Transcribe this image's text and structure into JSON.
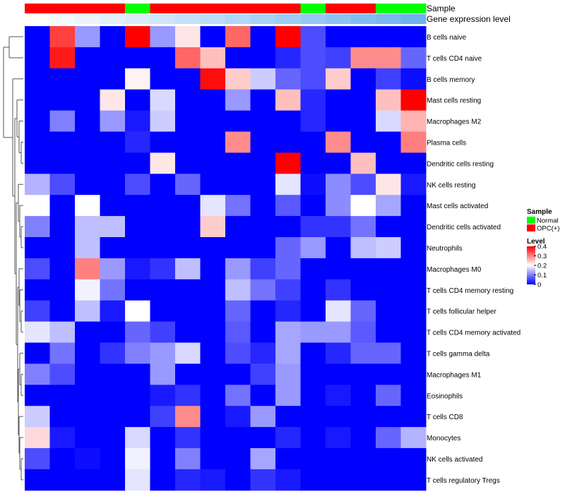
{
  "chart_data": {
    "type": "heatmap",
    "title": "",
    "annotation_labels": {
      "sample": "Sample",
      "gene_expression": "Gene expression level"
    },
    "sample_groups": [
      "OPC(+)",
      "OPC(+)",
      "OPC(+)",
      "OPC(+)",
      "Normal",
      "OPC(+)",
      "OPC(+)",
      "OPC(+)",
      "OPC(+)",
      "OPC(+)",
      "OPC(+)",
      "Normal",
      "OPC(+)",
      "OPC(+)",
      "Normal",
      "Normal"
    ],
    "gene_expression_levels": [
      0.0,
      0.05,
      0.1,
      0.14,
      0.19,
      0.24,
      0.29,
      0.33,
      0.38,
      0.43,
      0.48,
      0.52,
      0.57,
      0.62,
      0.67,
      0.72
    ],
    "rows": [
      "B cells naive",
      "T cells CD4 naive",
      "B cells memory",
      "Mast cells resting",
      "Macrophages M2",
      "Plasma cells",
      "Dendritic cells resting",
      "NK cells resting",
      "Mast cells activated",
      "Dendritic cells activated",
      "Neutrophils",
      "Macrophages M0",
      "T cells CD4 memory resting",
      "T cells follicular helper",
      "T cells CD4 memory activated",
      "T cells gamma delta",
      "Macrophages M1",
      "Eosinophils",
      "T cells CD8",
      "Monocytes",
      "NK cells activated",
      "T cells regulatory  Tregs"
    ],
    "values": [
      [
        0.0,
        0.35,
        0.12,
        0.0,
        0.4,
        0.12,
        0.22,
        0.0,
        0.32,
        0.0,
        0.4,
        0.06,
        0.0,
        0.0,
        0.0,
        0.0
      ],
      [
        0.0,
        0.38,
        0.0,
        0.0,
        0.0,
        0.0,
        0.32,
        0.25,
        0.0,
        0.0,
        0.03,
        0.06,
        0.05,
        0.29,
        0.29,
        0.08
      ],
      [
        0.0,
        0.0,
        0.0,
        0.0,
        0.21,
        0.0,
        0.0,
        0.39,
        0.24,
        0.16,
        0.08,
        0.06,
        0.24,
        0.0,
        0.05,
        0.01
      ],
      [
        0.0,
        0.0,
        0.0,
        0.22,
        0.0,
        0.17,
        0.0,
        0.0,
        0.12,
        0.0,
        0.25,
        0.03,
        0.0,
        0.0,
        0.25,
        0.4
      ],
      [
        0.0,
        0.1,
        0.0,
        0.12,
        0.02,
        0.16,
        0.0,
        0.0,
        0.0,
        0.0,
        0.0,
        0.03,
        0.0,
        0.0,
        0.17,
        0.26
      ],
      [
        0.0,
        0.0,
        0.0,
        0.0,
        0.03,
        0.0,
        0.0,
        0.0,
        0.29,
        0.0,
        0.0,
        0.0,
        0.29,
        0.0,
        0.0,
        0.3
      ],
      [
        0.0,
        0.0,
        0.0,
        0.0,
        0.0,
        0.22,
        0.0,
        0.0,
        0.0,
        0.0,
        0.4,
        0.0,
        0.0,
        0.25,
        0.0,
        0.0
      ],
      [
        0.14,
        0.06,
        0.0,
        0.0,
        0.06,
        0.0,
        0.08,
        0.0,
        0.0,
        0.0,
        0.18,
        0.01,
        0.11,
        0.06,
        0.22,
        0.02
      ],
      [
        0.2,
        0.0,
        0.2,
        0.0,
        0.0,
        0.0,
        0.0,
        0.18,
        0.09,
        0.0,
        0.07,
        0.0,
        0.11,
        0.2,
        0.13,
        0.0
      ],
      [
        0.1,
        0.0,
        0.15,
        0.15,
        0.0,
        0.0,
        0.0,
        0.24,
        0.0,
        0.0,
        0.0,
        0.04,
        0.04,
        0.09,
        0.0,
        0.0
      ],
      [
        0.0,
        0.0,
        0.15,
        0.0,
        0.0,
        0.0,
        0.0,
        0.0,
        0.0,
        0.0,
        0.08,
        0.12,
        0.0,
        0.15,
        0.16,
        0.0
      ],
      [
        0.06,
        0.0,
        0.3,
        0.12,
        0.02,
        0.04,
        0.15,
        0.0,
        0.12,
        0.05,
        0.08,
        0.0,
        0.0,
        0.0,
        0.0,
        0.0
      ],
      [
        0.0,
        0.0,
        0.19,
        0.09,
        0.0,
        0.0,
        0.0,
        0.0,
        0.15,
        0.09,
        0.05,
        0.0,
        0.04,
        0.0,
        0.0,
        0.0
      ],
      [
        0.05,
        0.0,
        0.15,
        0.02,
        0.2,
        0.0,
        0.0,
        0.0,
        0.08,
        0.0,
        0.03,
        0.0,
        0.18,
        0.08,
        0.0,
        0.0
      ],
      [
        0.18,
        0.15,
        0.0,
        0.0,
        0.08,
        0.05,
        0.0,
        0.0,
        0.07,
        0.0,
        0.13,
        0.12,
        0.12,
        0.07,
        0.0,
        0.0
      ],
      [
        0.0,
        0.09,
        0.0,
        0.04,
        0.1,
        0.12,
        0.17,
        0.0,
        0.06,
        0.03,
        0.13,
        0.0,
        0.03,
        0.08,
        0.08,
        0.0
      ],
      [
        0.1,
        0.06,
        0.0,
        0.0,
        0.0,
        0.12,
        0.0,
        0.0,
        0.0,
        0.05,
        0.12,
        0.0,
        0.0,
        0.0,
        0.0,
        0.0
      ],
      [
        0.0,
        0.0,
        0.0,
        0.0,
        0.0,
        0.02,
        0.04,
        0.0,
        0.09,
        0.0,
        0.12,
        0.0,
        0.02,
        0.0,
        0.08,
        0.0
      ],
      [
        0.16,
        0.0,
        0.0,
        0.0,
        0.0,
        0.05,
        0.29,
        0.0,
        0.02,
        0.12,
        0.0,
        0.0,
        0.0,
        0.0,
        0.0,
        0.0
      ],
      [
        0.23,
        0.02,
        0.0,
        0.0,
        0.17,
        0.0,
        0.04,
        0.0,
        0.0,
        0.0,
        0.03,
        0.0,
        0.02,
        0.0,
        0.08,
        0.14
      ],
      [
        0.06,
        0.0,
        0.01,
        0.0,
        0.19,
        0.0,
        0.1,
        0.0,
        0.0,
        0.13,
        0.0,
        0.0,
        0.0,
        0.0,
        0.0,
        0.0
      ],
      [
        0.0,
        0.0,
        0.0,
        0.0,
        0.18,
        0.0,
        0.03,
        0.02,
        0.0,
        0.04,
        0.02,
        0.0,
        0.0,
        0.0,
        0.0,
        0.0
      ]
    ],
    "color_scale": {
      "min": 0,
      "mid": 0.2,
      "max": 0.4,
      "low": "#0000ff",
      "midcolor": "#ffffff",
      "high": "#ff0000"
    },
    "legend": {
      "sample_title": "Sample",
      "sample_entries": [
        {
          "label": "Normal",
          "color": "#00ff00"
        },
        {
          "label": "OPC(+)",
          "color": "#ff0000"
        }
      ],
      "level_title": "Level",
      "level_ticks": [
        "0.4",
        "0.3",
        "0.2",
        "0.1",
        "0"
      ]
    }
  }
}
